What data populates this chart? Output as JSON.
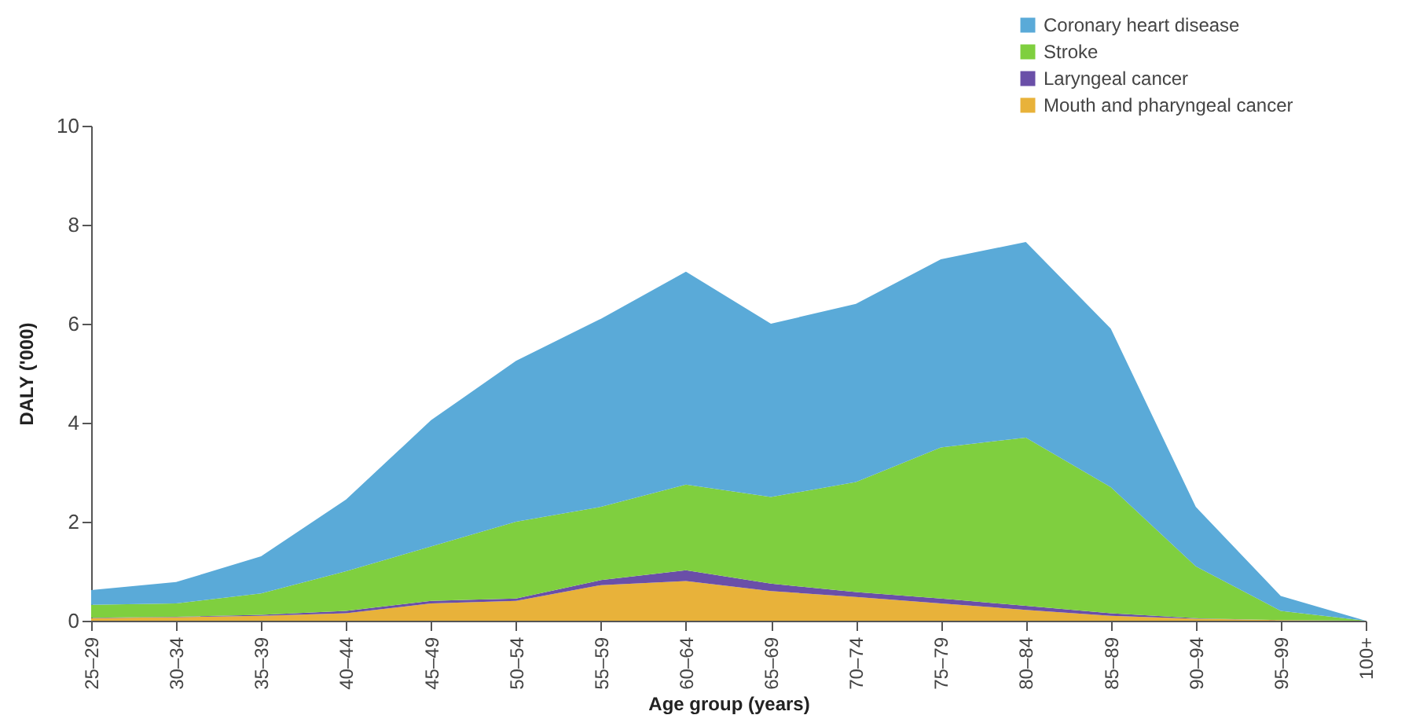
{
  "chart_data": {
    "type": "area",
    "stacked": true,
    "xlabel": "Age group (years)",
    "ylabel": "DALY ('000)",
    "categories": [
      "25–29",
      "30–34",
      "35–39",
      "40–44",
      "45–49",
      "50–54",
      "55–59",
      "60–64",
      "65–69",
      "70–74",
      "75–79",
      "80–84",
      "85–89",
      "90–94",
      "95–99",
      "100+"
    ],
    "series": [
      {
        "name": "Mouth and pharyngeal cancer",
        "color": "#e8b23a",
        "values": [
          0.05,
          0.07,
          0.1,
          0.15,
          0.35,
          0.4,
          0.72,
          0.8,
          0.6,
          0.48,
          0.35,
          0.22,
          0.1,
          0.04,
          0.01,
          0
        ]
      },
      {
        "name": "Laryngeal cancer",
        "color": "#6a4fa8",
        "values": [
          0.01,
          0.01,
          0.02,
          0.05,
          0.05,
          0.05,
          0.1,
          0.22,
          0.15,
          0.1,
          0.1,
          0.08,
          0.05,
          0.01,
          0,
          0
        ]
      },
      {
        "name": "Stroke",
        "color": "#7fcf3f",
        "values": [
          0.26,
          0.27,
          0.43,
          0.8,
          1.1,
          1.55,
          1.48,
          1.73,
          1.75,
          2.22,
          3.05,
          3.4,
          2.55,
          1.05,
          0.19,
          0
        ]
      },
      {
        "name": "Coronary heart disease",
        "color": "#5aaad8",
        "values": [
          0.3,
          0.43,
          0.75,
          1.45,
          2.55,
          3.25,
          3.8,
          4.3,
          3.5,
          3.6,
          3.8,
          3.95,
          3.2,
          1.2,
          0.3,
          0
        ]
      }
    ],
    "ylim": [
      0,
      10
    ],
    "yticks": [
      0,
      2,
      4,
      6,
      8,
      10
    ],
    "grid": false,
    "legend": "top right"
  }
}
